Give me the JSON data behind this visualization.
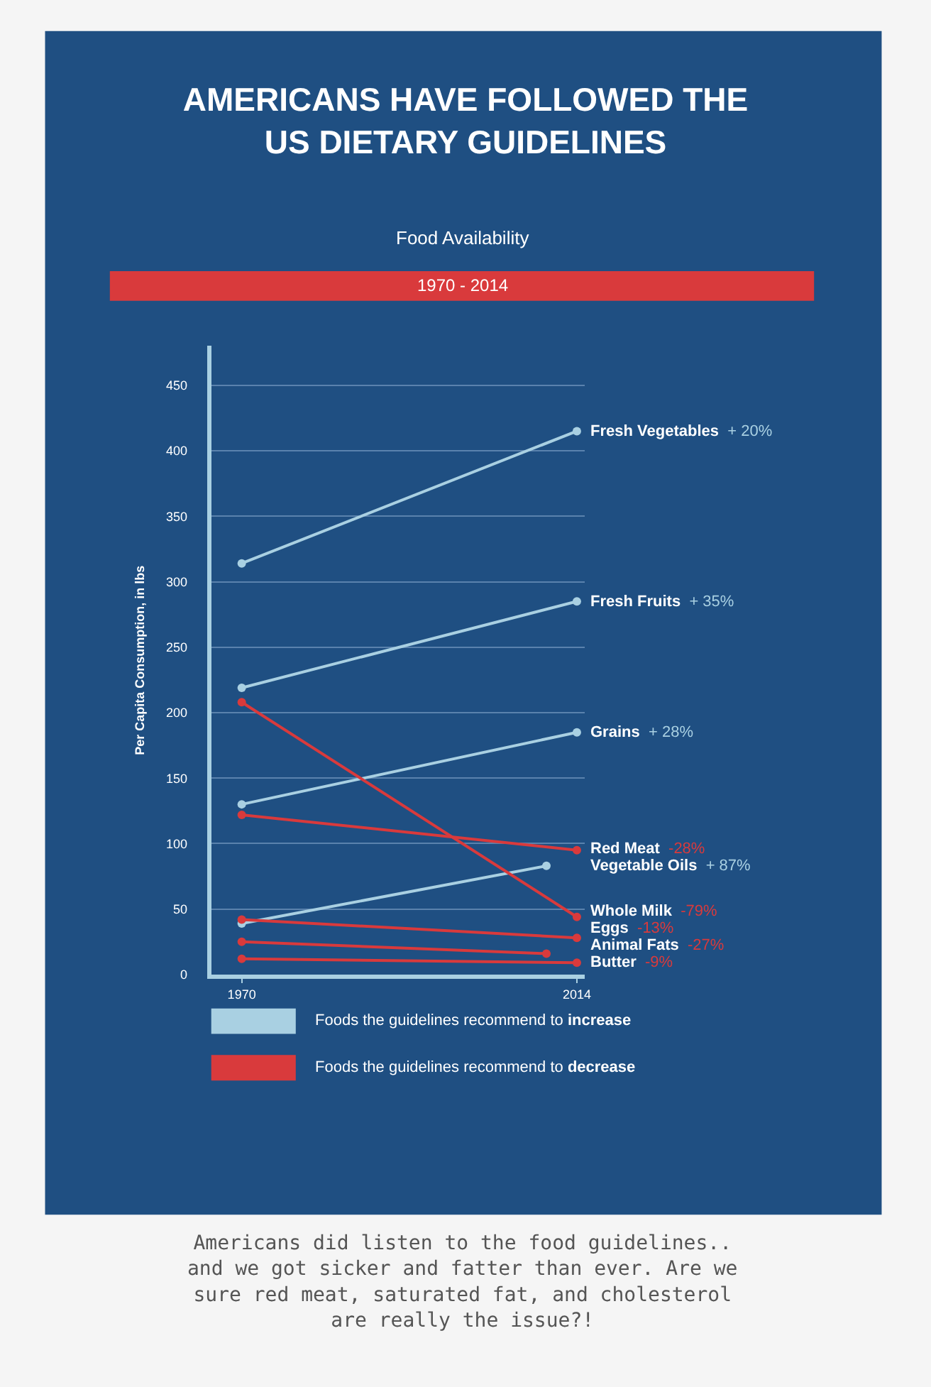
{
  "chart_data": {
    "type": "line",
    "title": "AMERICANS HAVE FOLLOWED THE\nUS DIETARY GUIDELINES",
    "subtitle": "Food Availability",
    "ylabel": "Per Capita Consumption, in lbs",
    "annotations": [
      "1970 - 2014",
      "Foods the guidelines recommend to increase",
      "Foods the guidelines recommend to decrease",
      "Americans did listen to the food guidelines..\nand we got sicker and fatter than ever. Are we\nsure red meat, saturated fat, and cholesterol\nare really the issue?!",
      "+ 20%",
      "+ 35%",
      "+ 28%",
      "-28%",
      "+ 87%",
      "-79%",
      "-13%",
      "-27%",
      "-9%"
    ],
    "xlim": [
      1966,
      2015
    ],
    "xticks": [
      1970,
      2014
    ],
    "ylim": [
      0,
      480
    ],
    "yticks": [
      0,
      50,
      100,
      150,
      200,
      250,
      300,
      350,
      400,
      450
    ],
    "grid": "y",
    "legend": false,
    "marker": "circle",
    "line_style": "solid",
    "series": [
      {
        "name": "Fresh Vegetables",
        "color": "#a9d0e2",
        "x": [
          1970,
          2014
        ],
        "values": [
          314,
          415
        ]
      },
      {
        "name": "Fresh Fruits",
        "color": "#a9d0e2",
        "x": [
          1970,
          2014
        ],
        "values": [
          219,
          285
        ]
      },
      {
        "name": "Grains",
        "color": "#a9d0e2",
        "x": [
          1970,
          2014
        ],
        "values": [
          130,
          185
        ]
      },
      {
        "name": "Red Meat",
        "color": "#d93a3c",
        "x": [
          1970,
          2014
        ],
        "values": [
          122,
          95
        ]
      },
      {
        "name": "Vegetable Oils",
        "color": "#a9d0e2",
        "x": [
          1970,
          2010
        ],
        "values": [
          39,
          83
        ]
      },
      {
        "name": "Whole Milk",
        "color": "#d93a3c",
        "x": [
          1970,
          2014
        ],
        "values": [
          208,
          44
        ]
      },
      {
        "name": "Eggs",
        "color": "#d93a3c",
        "x": [
          1970,
          2014
        ],
        "values": [
          42,
          28
        ]
      },
      {
        "name": "Animal Fats",
        "color": "#d93a3c",
        "x": [
          1970,
          2010
        ],
        "values": [
          25,
          16
        ]
      },
      {
        "name": "Butter",
        "color": "#d93a3c",
        "x": [
          1970,
          2014
        ],
        "values": [
          12,
          9
        ]
      }
    ]
  }
}
